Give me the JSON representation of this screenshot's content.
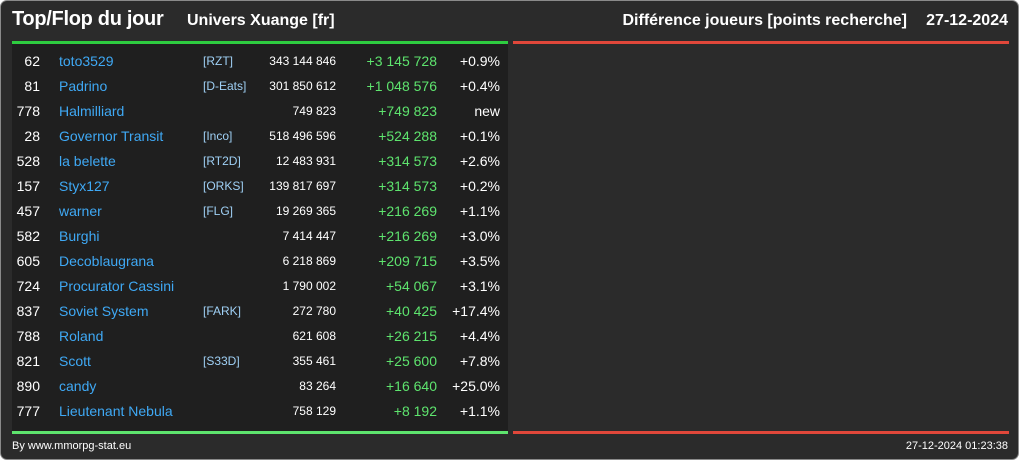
{
  "header": {
    "title": "Top/Flop du jour",
    "universe": "Univers Xuange [fr]",
    "metric": "Différence joueurs [points recherche]",
    "date": "27-12-2024"
  },
  "colors": {
    "background": "#2b2b2b",
    "panel": "#1f1f1f",
    "top_accent": "#2ecc40",
    "flop_accent": "#e0473a",
    "name_blue": "#3fa9f5",
    "gain_green": "#5ee46e"
  },
  "top_rows": [
    {
      "rank": "62",
      "name": "toto3529",
      "alliance": "[RZT]",
      "points": "343 144 846",
      "diff": "+3 145 728",
      "pct": "+0.9%"
    },
    {
      "rank": "81",
      "name": "Padrino",
      "alliance": "[D-Eats]",
      "points": "301 850 612",
      "diff": "+1 048 576",
      "pct": "+0.4%"
    },
    {
      "rank": "778",
      "name": "Halmilliard",
      "alliance": "",
      "points": "749 823",
      "diff": "+749 823",
      "pct": "new"
    },
    {
      "rank": "28",
      "name": "Governor Transit",
      "alliance": "[Inco]",
      "points": "518 496 596",
      "diff": "+524 288",
      "pct": "+0.1%"
    },
    {
      "rank": "528",
      "name": "la belette",
      "alliance": "[RT2D]",
      "points": "12 483 931",
      "diff": "+314 573",
      "pct": "+2.6%"
    },
    {
      "rank": "157",
      "name": "Styx127",
      "alliance": "[ORKS]",
      "points": "139 817 697",
      "diff": "+314 573",
      "pct": "+0.2%"
    },
    {
      "rank": "457",
      "name": "warner",
      "alliance": "[FLG]",
      "points": "19 269 365",
      "diff": "+216 269",
      "pct": "+1.1%"
    },
    {
      "rank": "582",
      "name": "Burghi",
      "alliance": "",
      "points": "7 414 447",
      "diff": "+216 269",
      "pct": "+3.0%"
    },
    {
      "rank": "605",
      "name": "Decoblaugrana",
      "alliance": "",
      "points": "6 218 869",
      "diff": "+209 715",
      "pct": "+3.5%"
    },
    {
      "rank": "724",
      "name": "Procurator Cassini",
      "alliance": "",
      "points": "1 790 002",
      "diff": "+54 067",
      "pct": "+3.1%"
    },
    {
      "rank": "837",
      "name": "Soviet System",
      "alliance": "[FARK]",
      "points": "272 780",
      "diff": "+40 425",
      "pct": "+17.4%"
    },
    {
      "rank": "788",
      "name": "Roland",
      "alliance": "",
      "points": "621 608",
      "diff": "+26 215",
      "pct": "+4.4%"
    },
    {
      "rank": "821",
      "name": "Scott",
      "alliance": "[S33D]",
      "points": "355 461",
      "diff": "+25 600",
      "pct": "+7.8%"
    },
    {
      "rank": "890",
      "name": "candy",
      "alliance": "",
      "points": "83 264",
      "diff": "+16 640",
      "pct": "+25.0%"
    },
    {
      "rank": "777",
      "name": "Lieutenant Nebula",
      "alliance": "",
      "points": "758 129",
      "diff": "+8 192",
      "pct": "+1.1%"
    }
  ],
  "footer": {
    "credit": "By www.mmorpg-stat.eu",
    "timestamp": "27-12-2024 01:23:38"
  }
}
